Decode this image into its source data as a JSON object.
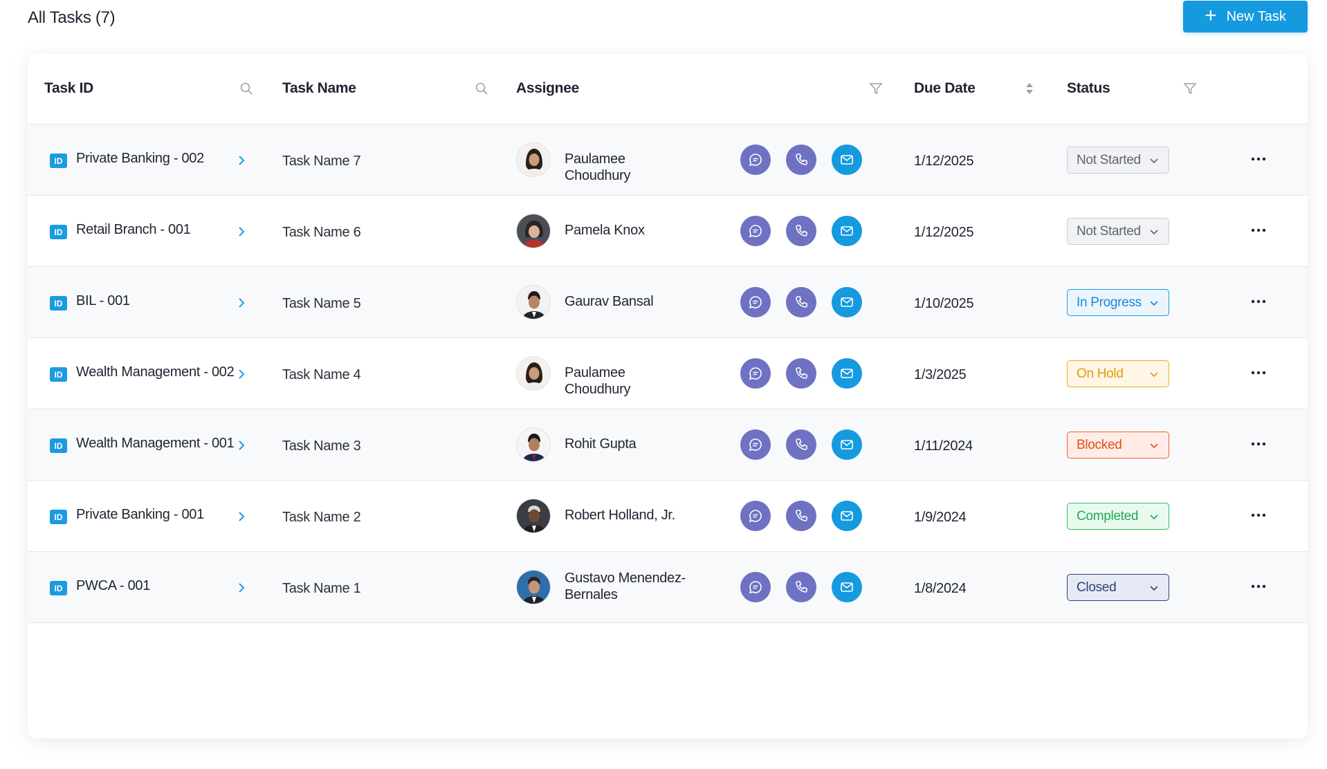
{
  "header": {
    "title": "All Tasks (7)",
    "new_task_label": "New Task"
  },
  "table": {
    "columns": {
      "task_id": "Task ID",
      "task_name": "Task Name",
      "assignee": "Assignee",
      "due_date": "Due Date",
      "status": "Status"
    },
    "rows": [
      {
        "task_id": "Private Banking - 002",
        "task_name": "Task Name 7",
        "assignee": "Paulamee Choudhury",
        "due_date": "1/12/2025",
        "status": "Not Started"
      },
      {
        "task_id": "Retail Branch - 001",
        "task_name": "Task Name 6",
        "assignee": "Pamela Knox",
        "due_date": "1/12/2025",
        "status": "Not Started"
      },
      {
        "task_id": "BIL - 001",
        "task_name": "Task Name 5",
        "assignee": "Gaurav Bansal",
        "due_date": "1/10/2025",
        "status": "In Progress"
      },
      {
        "task_id": "Wealth Management - 002",
        "task_name": "Task Name 4",
        "assignee": "Paulamee Choudhury",
        "due_date": "1/3/2025",
        "status": "On Hold"
      },
      {
        "task_id": "Wealth Management - 001",
        "task_name": "Task Name 3",
        "assignee": "Rohit Gupta",
        "due_date": "1/11/2024",
        "status": "Blocked"
      },
      {
        "task_id": "Private Banking - 001",
        "task_name": "Task Name 2",
        "assignee": "Robert Holland, Jr.",
        "due_date": "1/9/2024",
        "status": "Completed"
      },
      {
        "task_id": "PWCA - 001",
        "task_name": "Task Name 1",
        "assignee_line1": "Gustavo Menendez-",
        "assignee_line2": "Bernales",
        "due_date": "1/8/2024",
        "status": "Closed"
      }
    ]
  },
  "id_badge": "ID",
  "colors": {
    "primary": "#159ae0",
    "action_purple": "#6f72c2",
    "status_not_started": "#5f6470",
    "status_in_progress": "#1c88d0",
    "status_on_hold": "#e09b10",
    "status_blocked": "#e04f1c",
    "status_completed": "#22a855",
    "status_closed": "#2f3f7a"
  },
  "icons": {
    "new_task": "plus-icon",
    "column_search": "search-icon",
    "column_filter": "filter-icon",
    "column_sort": "sort-icon",
    "row_expand": "chevron-right-icon",
    "chat": "chat-icon",
    "phone": "phone-icon",
    "mail": "mail-icon",
    "status_dropdown": "chevron-down-icon",
    "row_menu": "more-icon"
  }
}
